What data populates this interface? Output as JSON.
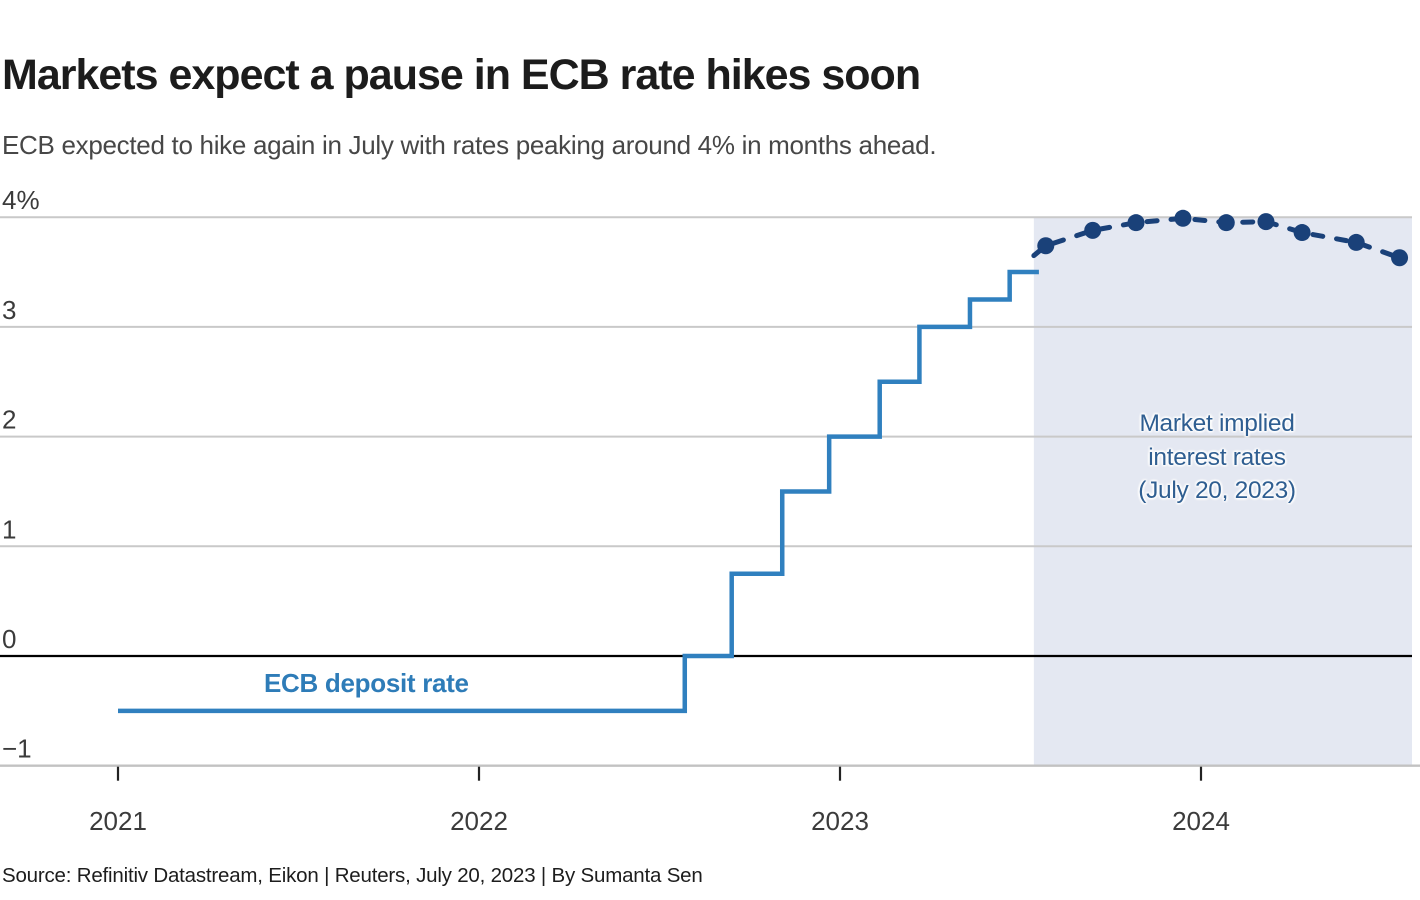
{
  "header": {
    "title": "Markets expect a pause in ECB rate hikes soon",
    "subtitle": "ECB expected to hike again in July with rates peaking around 4% in months ahead."
  },
  "footer": {
    "source": "Source: Refinitiv Datastream, Eikon | Reuters, July 20, 2023 | By Sumanta Sen"
  },
  "colors": {
    "deposit_line": "#3080bf",
    "implied_line": "#1a4179",
    "shaded_region": "#e4e8f2",
    "gridline": "#c9c9c9",
    "zero_line": "#000000",
    "axis_line": "#c2c2c2",
    "tick_mark": "#222222",
    "axis_text": "#3b3b3b",
    "title_text": "#1c1c1c",
    "subtitle_text": "#474747",
    "annotation_text": "#2f5e91"
  },
  "chart_data": {
    "type": "line",
    "title": "Markets expect a pause in ECB rate hikes soon",
    "subtitle": "ECB expected to hike again in July with rates peaking around 4% in months ahead.",
    "grid": true,
    "x_axis": {
      "ticks": [
        2021,
        2022,
        2023,
        2024
      ],
      "tick_labels": [
        "2021",
        "2022",
        "2023",
        "2024"
      ],
      "range": [
        2020.67,
        2024.58
      ]
    },
    "y_axis": {
      "unit": "%",
      "ticks": [
        {
          "value": 4,
          "label": "4%"
        },
        {
          "value": 3,
          "label": "3"
        },
        {
          "value": 2,
          "label": "2"
        },
        {
          "value": 1,
          "label": "1"
        },
        {
          "value": 0,
          "label": "0"
        },
        {
          "value": -1,
          "label": "−1"
        }
      ],
      "range": [
        -1,
        4.1
      ],
      "zero_line": true
    },
    "series": [
      {
        "name": "ECB deposit rate",
        "label": "ECB deposit rate",
        "type": "step",
        "color": "#3080bf",
        "points": [
          [
            2021.0,
            -0.5
          ],
          [
            2022.57,
            0.0
          ],
          [
            2022.7,
            0.75
          ],
          [
            2022.84,
            1.5
          ],
          [
            2022.97,
            2.0
          ],
          [
            2023.11,
            2.5
          ],
          [
            2023.22,
            3.0
          ],
          [
            2023.36,
            3.25
          ],
          [
            2023.47,
            3.5
          ]
        ],
        "end_x": 2023.551
      },
      {
        "name": "Market implied interest rates (July 20, 2023)",
        "type": "dashed_line_dots",
        "color": "#1a4179",
        "lead_in": [
          2023.537,
          3.65
        ],
        "points": [
          [
            2023.57,
            3.74
          ],
          [
            2023.7,
            3.88
          ],
          [
            2023.82,
            3.95
          ],
          [
            2023.95,
            3.99
          ],
          [
            2024.07,
            3.95
          ],
          [
            2024.18,
            3.96
          ],
          [
            2024.28,
            3.86
          ],
          [
            2024.43,
            3.77
          ],
          [
            2024.55,
            3.63
          ]
        ]
      }
    ],
    "shaded_region": {
      "x_start": 2023.537,
      "x_end": 2024.58,
      "y_top": 4,
      "y_bottom": -1,
      "color": "#e4e8f2",
      "label_lines": [
        "Market implied",
        "interest rates",
        "(July 20, 2023)"
      ]
    }
  }
}
